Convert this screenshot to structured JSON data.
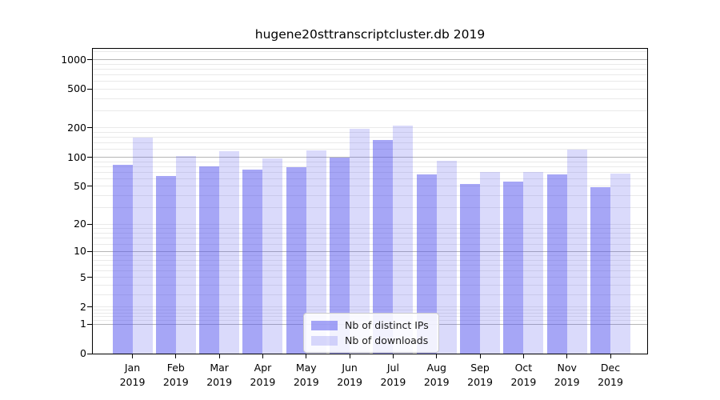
{
  "chart_data": {
    "type": "bar",
    "title": "hugene20sttranscriptcluster.db 2019",
    "categories": [
      "Jan",
      "Feb",
      "Mar",
      "Apr",
      "May",
      "Jun",
      "Jul",
      "Aug",
      "Sep",
      "Oct",
      "Nov",
      "Dec"
    ],
    "category_year": "2019",
    "series": [
      {
        "name": "Nb of distinct IPs",
        "color": "#5555ee",
        "alpha": 0.52,
        "values": [
          83,
          64,
          80,
          74,
          79,
          100,
          149,
          67,
          53,
          56,
          67,
          49
        ]
      },
      {
        "name": "Nb of downloads",
        "color": "#5555ee",
        "alpha": 0.22,
        "values": [
          160,
          102,
          116,
          98,
          118,
          195,
          211,
          91,
          71,
          70,
          119,
          68
        ]
      }
    ],
    "y_ticks": [
      0,
      1,
      2,
      5,
      10,
      20,
      50,
      100,
      200,
      500,
      1000
    ],
    "scale": "log1p",
    "axis_max": 1290,
    "xlabel": "",
    "ylabel": "",
    "grid": true,
    "legend_position": "lower-center"
  },
  "colors": {
    "bar_base": "#5555ee",
    "grid_major": "#b5b5b5",
    "grid_minor": "#e9e9e9",
    "axis": "#000000",
    "text": "#000000"
  }
}
